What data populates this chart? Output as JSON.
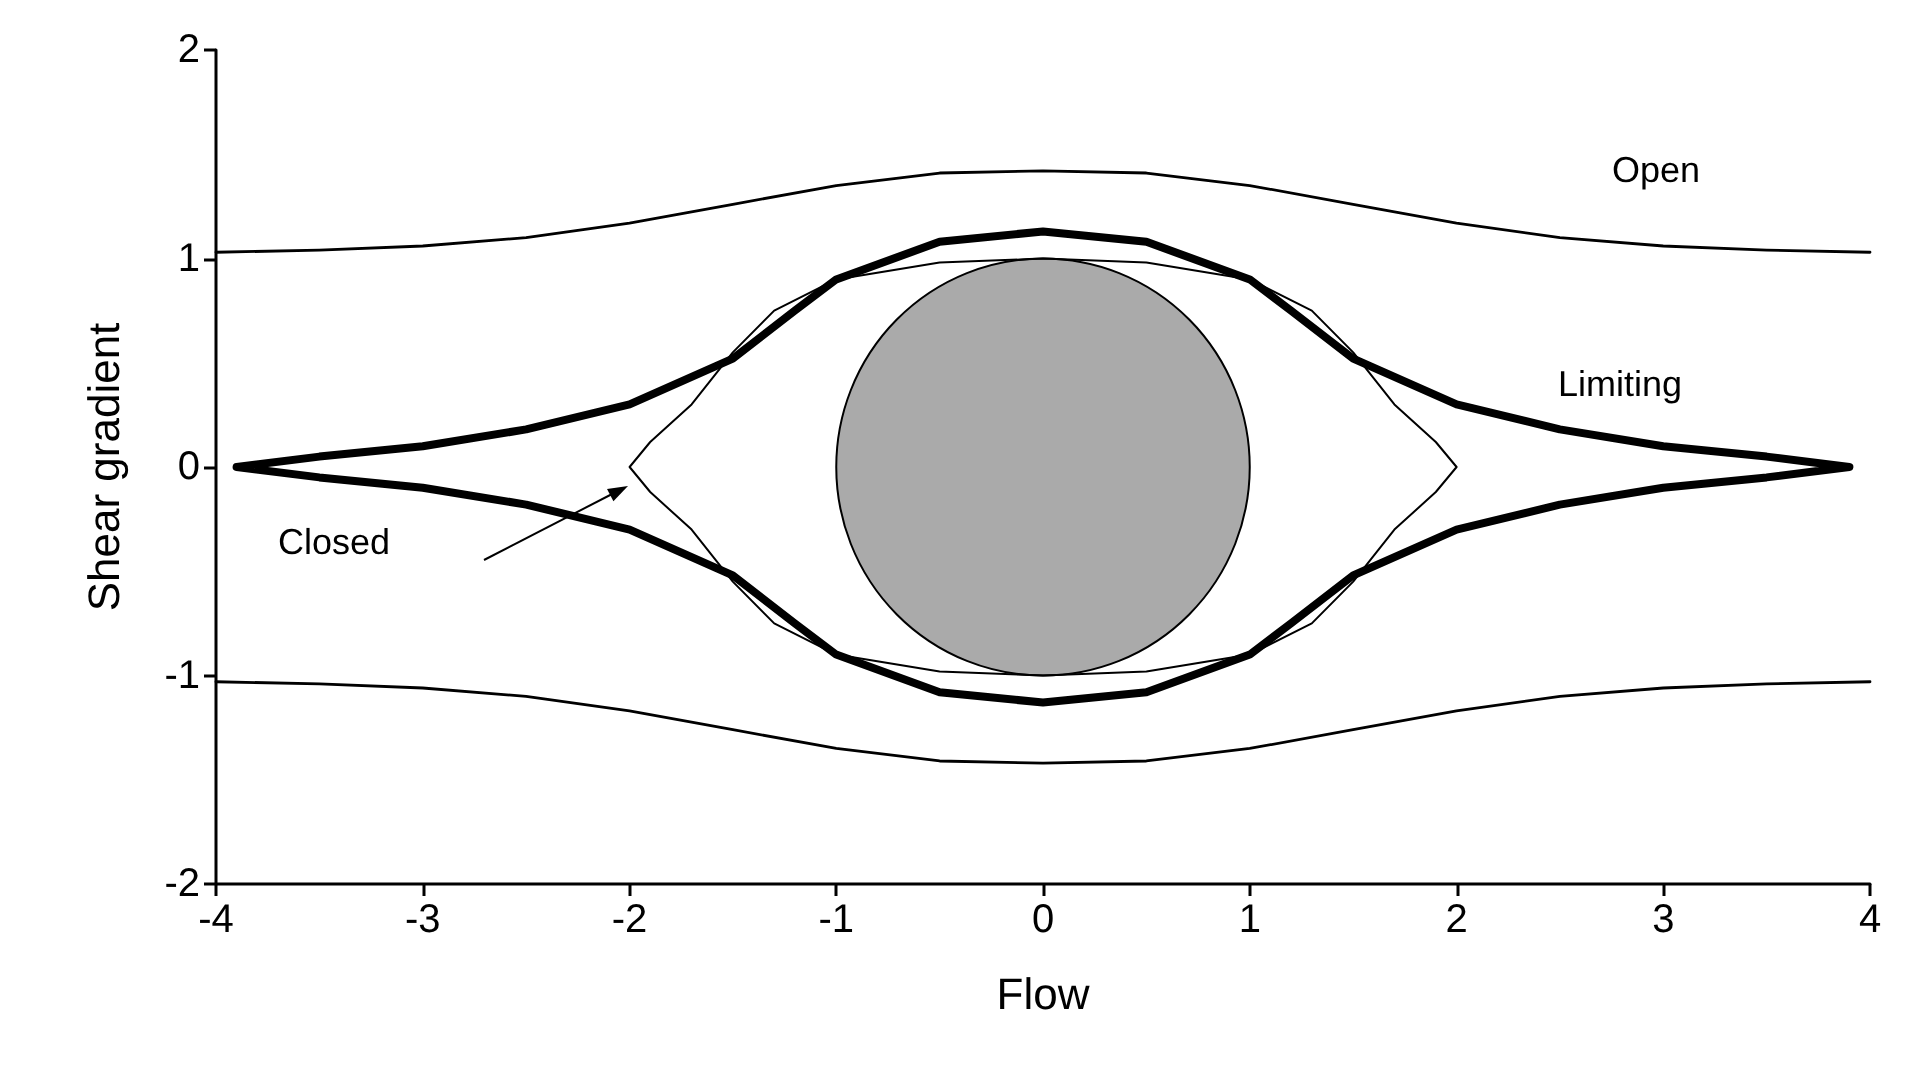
{
  "chart_data": {
    "type": "line",
    "xlabel": "Flow",
    "ylabel": "Shear gradient",
    "xlim": [
      -4,
      4
    ],
    "ylim": [
      -2,
      2
    ],
    "xticks": [
      -4,
      -3,
      -2,
      -1,
      0,
      1,
      2,
      3,
      4
    ],
    "yticks": [
      -2,
      -1,
      0,
      1,
      2
    ],
    "marker": "none",
    "line_style": "solid",
    "series": [
      {
        "color": "#000000",
        "x": [
          -4,
          -3.5,
          -3,
          -2.5,
          -2,
          -1.5,
          -1,
          -0.5,
          0,
          0.5,
          1,
          1.5,
          2,
          2.5,
          3,
          3.5,
          4
        ],
        "values": [
          1.03,
          1.04,
          1.06,
          1.1,
          1.17,
          1.26,
          1.35,
          1.41,
          1.42,
          1.41,
          1.35,
          1.26,
          1.17,
          1.1,
          1.06,
          1.04,
          1.03
        ]
      },
      {
        "color": "#000000",
        "x": [
          -4,
          -3.5,
          -3,
          -2.5,
          -2,
          -1.5,
          -1,
          -0.5,
          0,
          0.5,
          1,
          1.5,
          2,
          2.5,
          3,
          3.5,
          4
        ],
        "values": [
          -1.03,
          -1.04,
          -1.06,
          -1.1,
          -1.17,
          -1.26,
          -1.35,
          -1.41,
          -1.42,
          -1.41,
          -1.35,
          -1.26,
          -1.17,
          -1.1,
          -1.06,
          -1.04,
          -1.03
        ]
      }
    ],
    "annotations": [
      "Open",
      "Limiting",
      "Closed"
    ]
  }
}
